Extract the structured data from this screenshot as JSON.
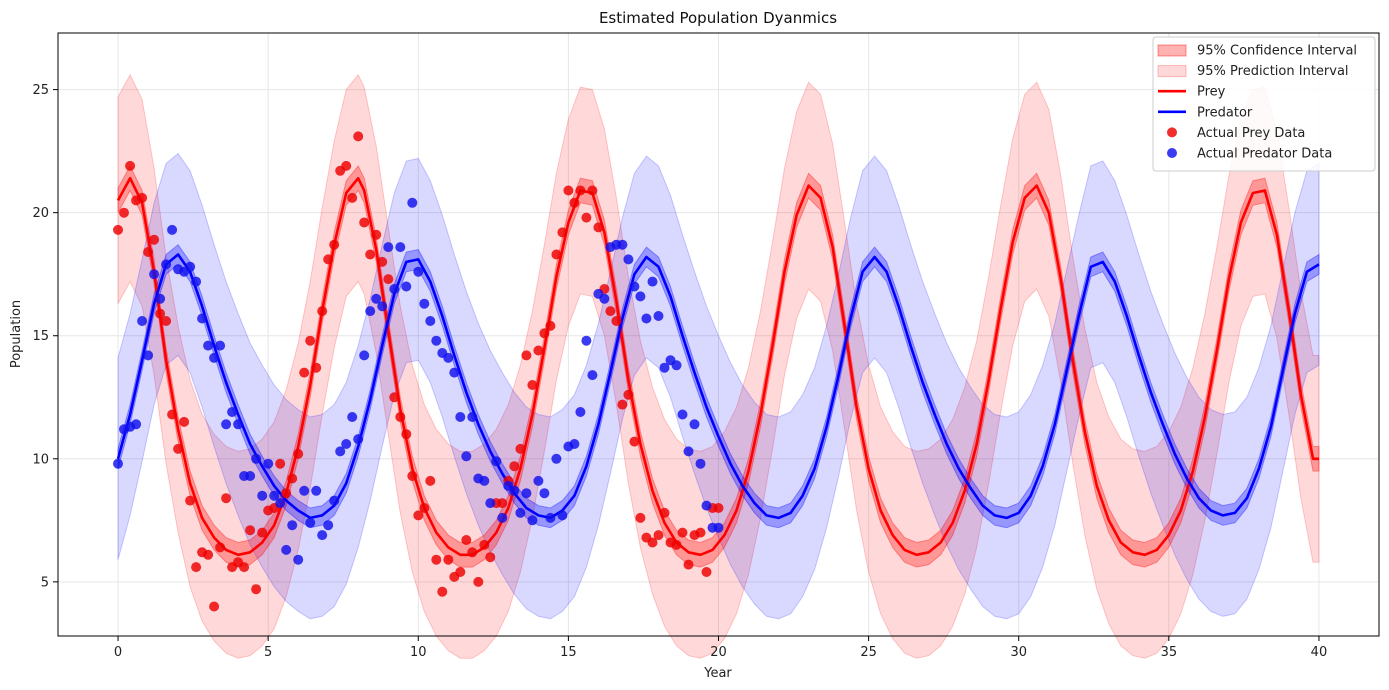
{
  "chart_data": {
    "type": "line",
    "title": "Estimated Population Dyanmics",
    "xlabel": "Year",
    "ylabel": "Population",
    "xlim": [
      -2,
      42
    ],
    "ylim": [
      2.8,
      27.3
    ],
    "xticks": [
      0,
      5,
      10,
      15,
      20,
      25,
      30,
      35,
      40
    ],
    "yticks": [
      5,
      10,
      15,
      20,
      25
    ],
    "grid": true,
    "legend_position": "top-right",
    "colors": {
      "prey": "#ff0000",
      "predator": "#0000ff",
      "prey_points": "#ee0000",
      "predator_points": "#1010ee"
    },
    "legend": [
      {
        "label": "95% Confidence Interval",
        "kind": "patch-ci"
      },
      {
        "label": "95% Prediction Interval",
        "kind": "patch-pi"
      },
      {
        "label": "Prey",
        "kind": "line-prey"
      },
      {
        "label": "Predator",
        "kind": "line-predator"
      },
      {
        "label": "Actual Prey Data",
        "kind": "dot-prey"
      },
      {
        "label": "Actual Predator Data",
        "kind": "dot-predator"
      }
    ],
    "series": [
      {
        "name": "Prey",
        "x": [
          0,
          0.4,
          0.8,
          1.2,
          1.6,
          2.0,
          2.4,
          2.8,
          3.2,
          3.6,
          4.0,
          4.4,
          4.8,
          5.2,
          5.6,
          6.0,
          6.4,
          6.8,
          7.2,
          7.6,
          8.0,
          8.2,
          8.6,
          9.0,
          9.4,
          9.8,
          10.2,
          10.6,
          11.0,
          11.4,
          11.8,
          12.2,
          12.6,
          13.0,
          13.4,
          13.8,
          14.2,
          14.6,
          15.0,
          15.4,
          15.8,
          16.2,
          16.6,
          17.0,
          17.4,
          17.8,
          18.2,
          18.6,
          19.0,
          19.4,
          19.8,
          20.2,
          20.6,
          21.0,
          21.4,
          21.8,
          22.2,
          22.6,
          23.0,
          23.4,
          23.8,
          24.2,
          24.6,
          25.0,
          25.4,
          25.8,
          26.2,
          26.6,
          27.0,
          27.4,
          27.8,
          28.2,
          28.6,
          29.0,
          29.4,
          29.8,
          30.2,
          30.6,
          31.0,
          31.4,
          31.8,
          32.2,
          32.6,
          33.0,
          33.4,
          33.8,
          34.2,
          34.6,
          35.0,
          35.4,
          35.8,
          36.2,
          36.6,
          37.0,
          37.4,
          37.8,
          38.2,
          38.6,
          39.0,
          39.4,
          39.8,
          40.0
        ],
        "y": [
          20.5,
          21.4,
          20.4,
          17.6,
          14.0,
          11.2,
          9.0,
          7.6,
          6.8,
          6.3,
          6.1,
          6.2,
          6.6,
          7.3,
          8.6,
          10.5,
          13.0,
          16.0,
          18.7,
          20.8,
          21.4,
          20.9,
          18.5,
          15.2,
          12.0,
          9.6,
          8.0,
          7.0,
          6.4,
          6.1,
          6.1,
          6.4,
          7.0,
          8.0,
          9.6,
          11.8,
          14.5,
          17.4,
          19.6,
          20.9,
          20.8,
          19.2,
          16.4,
          13.2,
          10.6,
          8.7,
          7.4,
          6.6,
          6.2,
          6.1,
          6.3,
          6.9,
          7.9,
          9.5,
          11.8,
          14.6,
          17.6,
          19.9,
          21.1,
          20.6,
          18.6,
          15.4,
          12.1,
          9.6,
          7.9,
          6.9,
          6.3,
          6.1,
          6.2,
          6.6,
          7.4,
          8.7,
          10.6,
          13.2,
          16.1,
          18.8,
          20.6,
          21.1,
          20.0,
          17.3,
          14.0,
          11.1,
          8.9,
          7.5,
          6.6,
          6.2,
          6.1,
          6.3,
          6.9,
          7.9,
          9.5,
          11.7,
          14.4,
          17.3,
          19.6,
          20.8,
          20.9,
          19.1,
          16.0,
          12.6,
          10.0,
          10.0
        ],
        "ci": 0.5,
        "pi": 4.2
      },
      {
        "name": "Predator",
        "x": [
          0,
          0.4,
          0.8,
          1.2,
          1.6,
          2.0,
          2.4,
          2.8,
          3.2,
          3.6,
          4.0,
          4.4,
          4.8,
          5.2,
          5.6,
          6.0,
          6.4,
          6.8,
          7.2,
          7.6,
          8.0,
          8.4,
          8.8,
          9.2,
          9.6,
          10.0,
          10.4,
          10.8,
          11.2,
          11.6,
          12.0,
          12.4,
          12.8,
          13.2,
          13.6,
          14.0,
          14.4,
          14.8,
          15.2,
          15.6,
          16.0,
          16.4,
          16.8,
          17.2,
          17.6,
          18.0,
          18.4,
          18.8,
          19.2,
          19.6,
          20.0,
          20.4,
          20.8,
          21.2,
          21.6,
          22.0,
          22.4,
          22.8,
          23.2,
          23.6,
          24.0,
          24.4,
          24.8,
          25.2,
          25.6,
          26.0,
          26.4,
          26.8,
          27.2,
          27.6,
          28.0,
          28.4,
          28.8,
          29.2,
          29.6,
          30.0,
          30.4,
          30.8,
          31.2,
          31.6,
          32.0,
          32.4,
          32.8,
          33.2,
          33.6,
          34.0,
          34.4,
          34.8,
          35.2,
          35.6,
          36.0,
          36.4,
          36.8,
          37.2,
          37.6,
          38.0,
          38.4,
          38.8,
          39.2,
          39.6,
          40.0
        ],
        "y": [
          10.0,
          11.8,
          14.0,
          16.3,
          17.9,
          18.3,
          17.6,
          16.2,
          14.6,
          13.1,
          11.8,
          10.6,
          9.7,
          8.9,
          8.3,
          7.9,
          7.6,
          7.7,
          8.1,
          9.0,
          10.5,
          12.4,
          14.6,
          16.7,
          18.0,
          18.1,
          17.2,
          15.8,
          14.2,
          12.7,
          11.4,
          10.3,
          9.4,
          8.6,
          8.0,
          7.7,
          7.6,
          7.9,
          8.5,
          9.7,
          11.4,
          13.5,
          15.7,
          17.5,
          18.2,
          17.8,
          16.6,
          15.0,
          13.5,
          12.1,
          10.9,
          9.8,
          8.9,
          8.2,
          7.7,
          7.6,
          7.8,
          8.5,
          9.6,
          11.3,
          13.4,
          15.7,
          17.6,
          18.2,
          17.6,
          16.2,
          14.6,
          13.1,
          11.8,
          10.6,
          9.6,
          8.8,
          8.1,
          7.7,
          7.6,
          7.8,
          8.5,
          9.7,
          11.4,
          13.6,
          15.8,
          17.8,
          18.0,
          17.2,
          15.8,
          14.2,
          12.7,
          11.4,
          10.2,
          9.2,
          8.4,
          7.9,
          7.7,
          7.8,
          8.4,
          9.6,
          11.3,
          13.6,
          15.9,
          17.6,
          17.9
        ],
        "ci": 0.4,
        "pi": 4.1
      }
    ],
    "scatter": [
      {
        "name": "Actual Prey Data",
        "x": [
          0,
          0.2,
          0.4,
          0.6,
          0.8,
          1.0,
          1.2,
          1.4,
          1.6,
          1.8,
          2.0,
          2.2,
          2.4,
          2.6,
          2.8,
          3.0,
          3.2,
          3.4,
          3.6,
          3.8,
          4.0,
          4.2,
          4.4,
          4.6,
          4.8,
          5.0,
          5.2,
          5.4,
          5.6,
          5.8,
          6.0,
          6.2,
          6.4,
          6.6,
          6.8,
          7.0,
          7.2,
          7.4,
          7.6,
          7.8,
          8.0,
          8.2,
          8.4,
          8.6,
          8.8,
          9.0,
          9.2,
          9.4,
          9.6,
          9.8,
          10.0,
          10.2,
          10.4,
          10.6,
          10.8,
          11.0,
          11.2,
          11.4,
          11.6,
          11.8,
          12.0,
          12.2,
          12.4,
          12.6,
          12.8,
          13.0,
          13.2,
          13.4,
          13.6,
          13.8,
          14.0,
          14.2,
          14.4,
          14.6,
          14.8,
          15.0,
          15.2,
          15.4,
          15.6,
          15.8,
          16.0,
          16.2,
          16.4,
          16.6,
          16.8,
          17.0,
          17.2,
          17.4,
          17.6,
          17.8,
          18.0,
          18.2,
          18.4,
          18.6,
          18.8,
          19.0,
          19.2,
          19.4,
          19.6,
          19.8,
          20.0
        ],
        "y": [
          19.3,
          20.0,
          21.9,
          20.5,
          20.6,
          18.4,
          18.9,
          15.9,
          15.6,
          11.8,
          10.4,
          11.5,
          8.3,
          5.6,
          6.2,
          6.1,
          4.0,
          6.4,
          8.4,
          5.6,
          5.8,
          5.6,
          7.1,
          4.7,
          7.0,
          7.9,
          8.0,
          9.8,
          8.6,
          9.2,
          10.2,
          13.5,
          14.8,
          13.7,
          16.0,
          18.1,
          18.7,
          21.7,
          21.9,
          20.6,
          23.1,
          19.6,
          18.3,
          19.1,
          18.0,
          17.3,
          12.5,
          11.7,
          11.0,
          9.3,
          7.7,
          8.0,
          9.1,
          5.9,
          4.6,
          5.9,
          5.2,
          5.4,
          6.7,
          6.2,
          5.0,
          6.5,
          6.0,
          8.2,
          8.2,
          9.1,
          9.7,
          10.4,
          14.2,
          13.0,
          14.4,
          15.1,
          15.4,
          18.3,
          19.2,
          20.9,
          20.4,
          20.9,
          19.8,
          20.9,
          19.4,
          16.9,
          16.0,
          15.6,
          12.2,
          12.6,
          10.7,
          7.6,
          6.8,
          6.6,
          6.9,
          7.8,
          6.6,
          6.5,
          7.0,
          5.7,
          6.9,
          7.0,
          5.4,
          8.0,
          8.0
        ]
      },
      {
        "name": "Actual Predator Data",
        "x": [
          0,
          0.2,
          0.4,
          0.6,
          0.8,
          1.0,
          1.2,
          1.4,
          1.6,
          1.8,
          2.0,
          2.2,
          2.4,
          2.6,
          2.8,
          3.0,
          3.2,
          3.4,
          3.6,
          3.8,
          4.0,
          4.2,
          4.4,
          4.6,
          4.8,
          5.0,
          5.2,
          5.4,
          5.6,
          5.8,
          6.0,
          6.2,
          6.4,
          6.6,
          6.8,
          7.0,
          7.2,
          7.4,
          7.6,
          7.8,
          8.0,
          8.2,
          8.4,
          8.6,
          8.8,
          9.0,
          9.2,
          9.4,
          9.6,
          9.8,
          10.0,
          10.2,
          10.4,
          10.6,
          10.8,
          11.0,
          11.2,
          11.4,
          11.6,
          11.8,
          12.0,
          12.2,
          12.4,
          12.6,
          12.8,
          13.0,
          13.2,
          13.4,
          13.6,
          13.8,
          14.0,
          14.2,
          14.4,
          14.6,
          14.8,
          15.0,
          15.2,
          15.4,
          15.6,
          15.8,
          16.0,
          16.2,
          16.4,
          16.6,
          16.8,
          17.0,
          17.2,
          17.4,
          17.6,
          17.8,
          18.0,
          18.2,
          18.4,
          18.6,
          18.8,
          19.0,
          19.2,
          19.4,
          19.6,
          19.8,
          20.0
        ],
        "y": [
          9.8,
          11.2,
          11.3,
          11.4,
          15.6,
          14.2,
          17.5,
          16.5,
          17.9,
          19.3,
          17.7,
          17.6,
          17.8,
          17.2,
          15.7,
          14.6,
          14.1,
          14.6,
          11.4,
          11.9,
          11.4,
          9.3,
          9.3,
          10.0,
          8.5,
          9.8,
          8.5,
          8.2,
          6.3,
          7.3,
          5.9,
          8.7,
          7.4,
          8.7,
          6.9,
          7.3,
          8.3,
          10.3,
          10.6,
          11.7,
          10.8,
          14.2,
          16.0,
          16.5,
          16.2,
          18.6,
          16.9,
          18.6,
          17.0,
          20.4,
          17.6,
          16.3,
          15.6,
          14.8,
          14.3,
          14.1,
          13.5,
          11.7,
          10.1,
          11.7,
          9.2,
          9.1,
          8.2,
          9.9,
          7.6,
          8.9,
          8.7,
          7.8,
          8.6,
          7.5,
          9.1,
          8.6,
          7.6,
          10.0,
          7.7,
          10.5,
          10.6,
          11.9,
          14.8,
          13.4,
          16.7,
          16.5,
          18.6,
          18.7,
          18.7,
          18.1,
          17.0,
          16.6,
          15.7,
          17.2,
          15.8,
          13.7,
          14.0,
          13.8,
          11.8,
          10.3,
          11.4,
          9.8,
          8.1,
          7.2,
          7.2
        ]
      }
    ]
  }
}
